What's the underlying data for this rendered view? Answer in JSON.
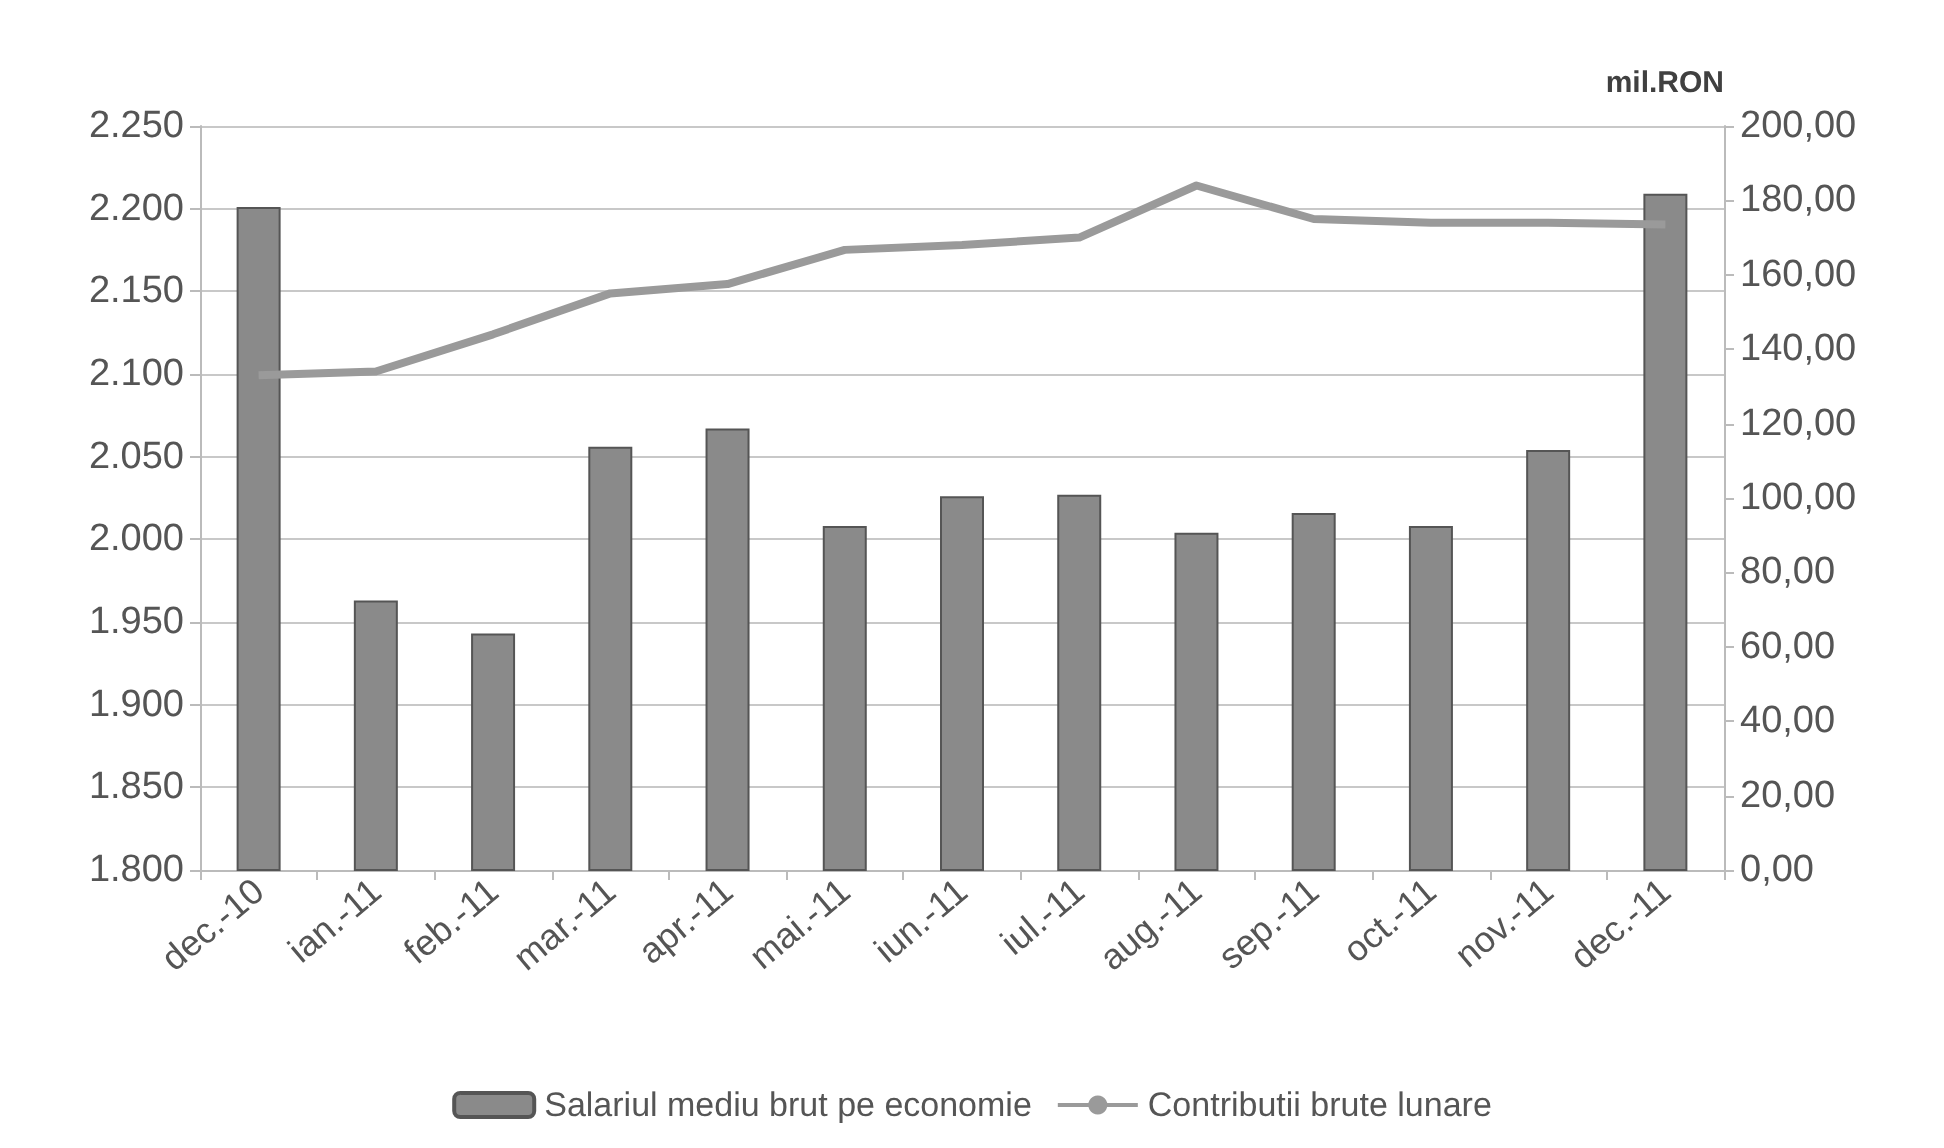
{
  "chart_data": {
    "type": "bar",
    "y2label": "mil.RON",
    "categories": [
      "dec.-10",
      "ian.-11",
      "feb.-11",
      "mar.-11",
      "apr.-11",
      "mai.-11",
      "iun.-11",
      "iul.-11",
      "aug.-11",
      "sep.-11",
      "oct.-11",
      "nov.-11",
      "dec.-11"
    ],
    "series": [
      {
        "name": "Salariul mediu brut pe economie",
        "color": "#8a8a8a",
        "values": [
          2201,
          1963,
          1943,
          2056,
          2067,
          2008,
          2026,
          2027,
          2004,
          2016,
          2008,
          2054,
          2209
        ]
      },
      {
        "name": "Contributii brute lunare",
        "type": "line",
        "axis": "y2",
        "color": "#9a9a9a",
        "values": [
          133,
          134,
          144,
          155,
          157.5,
          166.7,
          168,
          170,
          184,
          175,
          174,
          174,
          173.5
        ]
      }
    ],
    "ylim": [
      1800,
      2250
    ],
    "yticks": [
      {
        "value": 1800,
        "label": "1.800"
      },
      {
        "value": 1850,
        "label": "1.850"
      },
      {
        "value": 1900,
        "label": "1.900"
      },
      {
        "value": 1950,
        "label": "1.950"
      },
      {
        "value": 2000,
        "label": "2.000"
      },
      {
        "value": 2050,
        "label": "2.050"
      },
      {
        "value": 2100,
        "label": "2.100"
      },
      {
        "value": 2150,
        "label": "2.150"
      },
      {
        "value": 2200,
        "label": "2.200"
      },
      {
        "value": 2250,
        "label": "2.250"
      }
    ],
    "y2lim": [
      0,
      200
    ],
    "y2ticks": [
      {
        "value": 0,
        "label": "0,00"
      },
      {
        "value": 20,
        "label": "20,00"
      },
      {
        "value": 40,
        "label": "40,00"
      },
      {
        "value": 60,
        "label": "60,00"
      },
      {
        "value": 80,
        "label": "80,00"
      },
      {
        "value": 100,
        "label": "100,00"
      },
      {
        "value": 120,
        "label": "120,00"
      },
      {
        "value": 140,
        "label": "140,00"
      },
      {
        "value": 160,
        "label": "160,00"
      },
      {
        "value": 180,
        "label": "180,00"
      },
      {
        "value": 200,
        "label": "200,00"
      }
    ],
    "grid": "y",
    "legend": "bottom",
    "marker": "none"
  }
}
